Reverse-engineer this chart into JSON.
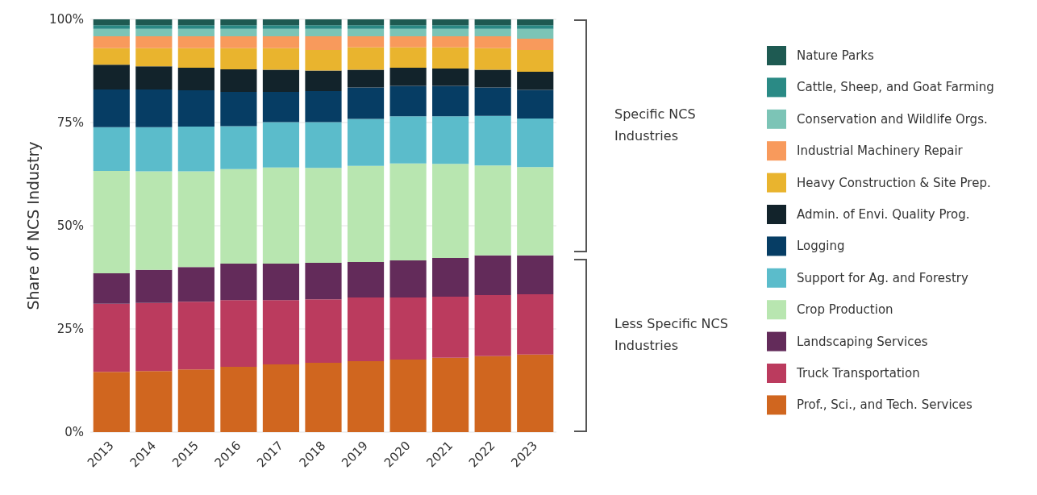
{
  "chart_data": {
    "type": "bar",
    "stacked": true,
    "ylabel": "Share of NCS Industry",
    "categories": [
      "2013",
      "2014",
      "2015",
      "2016",
      "2017",
      "2018",
      "2019",
      "2020",
      "2021",
      "2022",
      "2023"
    ],
    "ylim": [
      0,
      100
    ],
    "yticks": [
      {
        "value": 0,
        "label": "0%"
      },
      {
        "value": 25,
        "label": "25%"
      },
      {
        "value": 50,
        "label": "50%"
      },
      {
        "value": 75,
        "label": "75%"
      },
      {
        "value": 100,
        "label": "100%"
      }
    ],
    "grid": "y",
    "legend": "right",
    "annotations": [
      "Specific NCS Industries",
      "Less Specific NCS Industries"
    ],
    "series": [
      {
        "name": "Prof., Sci., and Tech. Services",
        "color": "#d0661f",
        "values": [
          14.6,
          14.8,
          15.2,
          15.8,
          16.4,
          16.8,
          17.2,
          17.6,
          18.0,
          18.4,
          18.8
        ]
      },
      {
        "name": "Truck Transportation",
        "color": "#bb3b5e",
        "values": [
          16.5,
          16.5,
          16.4,
          16.2,
          15.6,
          15.4,
          15.4,
          15.0,
          14.8,
          14.8,
          14.6
        ]
      },
      {
        "name": "Landscaping Services",
        "color": "#632b5a",
        "values": [
          7.4,
          8.0,
          8.4,
          8.8,
          8.8,
          8.8,
          8.6,
          9.0,
          9.4,
          9.6,
          9.4
        ]
      },
      {
        "name": "Crop Production",
        "color": "#b8e6b0",
        "values": [
          24.8,
          23.9,
          23.2,
          22.9,
          23.3,
          23.0,
          23.3,
          23.5,
          22.8,
          21.8,
          21.4
        ]
      },
      {
        "name": "Support for Ag. and Forestry",
        "color": "#5bbccb",
        "values": [
          10.6,
          10.7,
          10.8,
          10.4,
          11.0,
          11.1,
          11.4,
          11.4,
          11.5,
          12.0,
          11.8
        ]
      },
      {
        "name": "Logging",
        "color": "#063d64",
        "values": [
          9.1,
          9.1,
          8.8,
          8.3,
          7.3,
          7.5,
          7.6,
          7.4,
          7.4,
          6.9,
          6.9
        ]
      },
      {
        "name": "Admin. of Envi. Quality Prog.",
        "color": "#12232b",
        "values": [
          6.0,
          5.6,
          5.5,
          5.5,
          5.4,
          5.0,
          4.3,
          4.4,
          4.2,
          4.3,
          4.4
        ]
      },
      {
        "name": "Heavy Construction & Site Prep.",
        "color": "#e9b42e",
        "values": [
          4.0,
          4.4,
          4.7,
          5.1,
          5.2,
          5.0,
          5.4,
          4.9,
          5.1,
          5.2,
          5.3
        ]
      },
      {
        "name": "Industrial Machinery Repair",
        "color": "#f89a5c",
        "values": [
          2.9,
          2.9,
          2.9,
          2.9,
          2.9,
          3.3,
          2.7,
          2.7,
          2.7,
          2.9,
          2.7
        ]
      },
      {
        "name": "Conservation and Wildlife Orgs.",
        "color": "#7cc4b6",
        "values": [
          1.8,
          1.8,
          1.8,
          1.8,
          1.8,
          1.8,
          1.8,
          1.8,
          1.8,
          1.8,
          2.4
        ]
      },
      {
        "name": "Cattle, Sheep, and Goat Farming",
        "color": "#2a8a85",
        "values": [
          0.9,
          0.9,
          0.9,
          0.9,
          0.9,
          0.9,
          0.9,
          0.9,
          0.9,
          0.9,
          0.9
        ]
      },
      {
        "name": "Nature Parks",
        "color": "#1e5a52",
        "values": [
          1.4,
          1.4,
          1.4,
          1.4,
          1.4,
          1.4,
          1.4,
          1.4,
          1.4,
          1.4,
          1.4
        ]
      }
    ]
  }
}
